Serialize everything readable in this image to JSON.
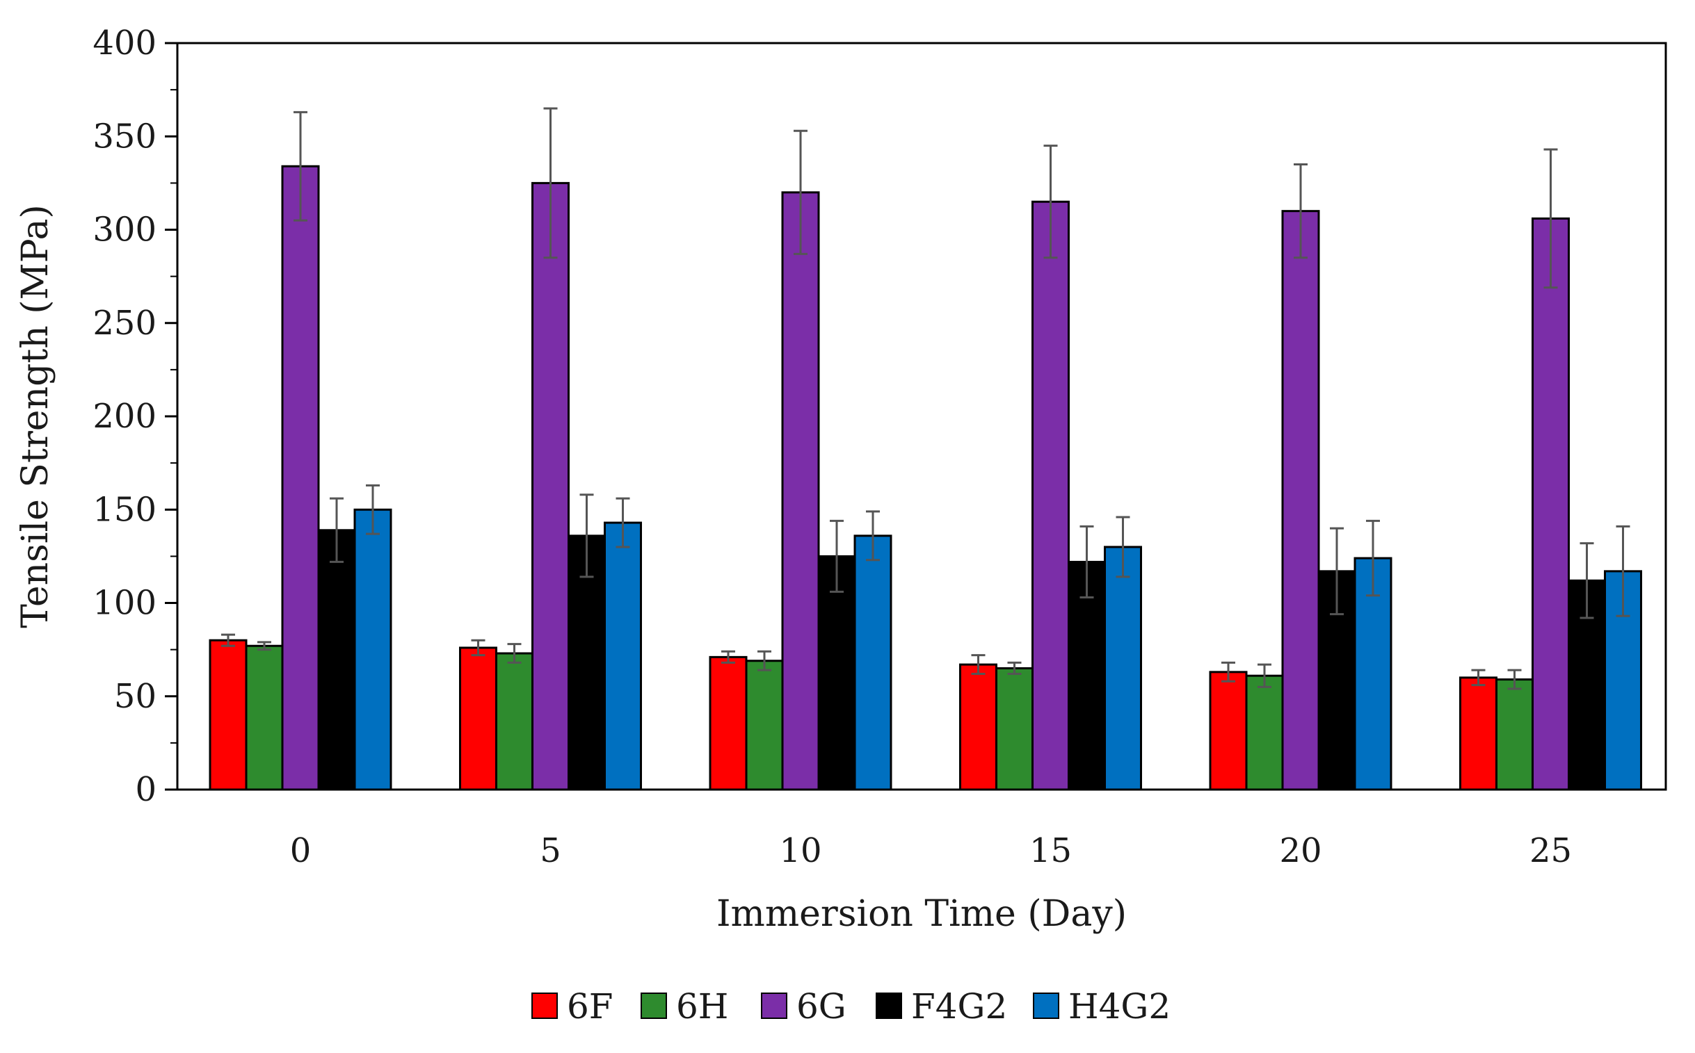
{
  "chart_data": {
    "type": "bar",
    "title": "",
    "xlabel": "Immersion Time (Day)",
    "ylabel": "Tensile Strength  (MPa)",
    "ylim": [
      0,
      400
    ],
    "yticks": [
      0,
      50,
      100,
      150,
      200,
      250,
      300,
      350,
      400
    ],
    "categories": [
      "0",
      "5",
      "10",
      "15",
      "20",
      "25"
    ],
    "series": [
      {
        "name": "6F",
        "color": "#ff0000",
        "values": [
          80,
          76,
          71,
          67,
          63,
          60
        ],
        "errors": [
          3,
          4,
          3,
          5,
          5,
          4
        ]
      },
      {
        "name": "6H",
        "color": "#2e8b2e",
        "values": [
          77,
          73,
          69,
          65,
          61,
          59
        ],
        "errors": [
          2,
          5,
          5,
          3,
          6,
          5
        ]
      },
      {
        "name": "6G",
        "color": "#7b2ea8",
        "values": [
          334,
          325,
          320,
          315,
          310,
          306
        ],
        "errors": [
          29,
          40,
          33,
          30,
          25,
          37
        ]
      },
      {
        "name": "F4G2",
        "color": "#000000",
        "values": [
          139,
          136,
          125,
          122,
          117,
          112
        ],
        "errors": [
          17,
          22,
          19,
          19,
          23,
          20
        ]
      },
      {
        "name": "H4G2",
        "color": "#0070c0",
        "values": [
          150,
          143,
          136,
          130,
          124,
          117
        ],
        "errors": [
          13,
          13,
          13,
          16,
          20,
          24
        ]
      }
    ],
    "grid": false,
    "legend": "bottom"
  }
}
